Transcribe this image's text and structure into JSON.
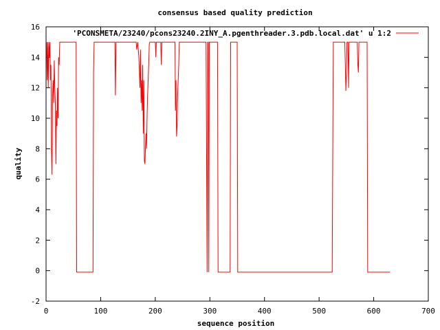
{
  "chart_data": {
    "type": "line",
    "title": "consensus based quality prediction",
    "xlabel": "sequence position",
    "ylabel": "quality",
    "xlim": [
      0,
      700
    ],
    "ylim": [
      -2,
      16
    ],
    "xticks": [
      0,
      100,
      200,
      300,
      400,
      500,
      600,
      700
    ],
    "yticks": [
      -2,
      0,
      2,
      4,
      6,
      8,
      10,
      12,
      14,
      16
    ],
    "grid": false,
    "legend_position": "top-right",
    "series": [
      {
        "name": "'PCONSMETA/23240/pcons23240.2INY_A.pgenthreader.3.pdb.local.dat' u 1:2",
        "color": "#ff0000",
        "points": [
          [
            1,
            15
          ],
          [
            2,
            12.5
          ],
          [
            3,
            15
          ],
          [
            4,
            12.0
          ],
          [
            5,
            15
          ],
          [
            6,
            14.0
          ],
          [
            7,
            15
          ],
          [
            8,
            12.5
          ],
          [
            9,
            13.5
          ],
          [
            10,
            8.0
          ],
          [
            11,
            6.3
          ],
          [
            12,
            11.5
          ],
          [
            13,
            12.5
          ],
          [
            14,
            11.0
          ],
          [
            15,
            13.8
          ],
          [
            16,
            12.0
          ],
          [
            17,
            11.0
          ],
          [
            18,
            7.0
          ],
          [
            19,
            10.5
          ],
          [
            20,
            9.5
          ],
          [
            21,
            12.0
          ],
          [
            22,
            10.0
          ],
          [
            23,
            14.0
          ],
          [
            24,
            13.5
          ],
          [
            25,
            15
          ],
          [
            55,
            15
          ],
          [
            56,
            -0.1
          ],
          [
            86,
            -0.1
          ],
          [
            87,
            13.0
          ],
          [
            88,
            15
          ],
          [
            126,
            15
          ],
          [
            127,
            11.5
          ],
          [
            128,
            15
          ],
          [
            165,
            15
          ],
          [
            166,
            14.5
          ],
          [
            168,
            15
          ],
          [
            170,
            14.0
          ],
          [
            172,
            12.0
          ],
          [
            173,
            14.5
          ],
          [
            174,
            11.0
          ],
          [
            175,
            12.5
          ],
          [
            176,
            10.5
          ],
          [
            177,
            13.5
          ],
          [
            178,
            9.0
          ],
          [
            179,
            12.5
          ],
          [
            180,
            7.2
          ],
          [
            181,
            7.0
          ],
          [
            182,
            8.0
          ],
          [
            183,
            9.0
          ],
          [
            184,
            8.0
          ],
          [
            185,
            10.0
          ],
          [
            186,
            11.5
          ],
          [
            187,
            12.5
          ],
          [
            188,
            13.5
          ],
          [
            189,
            14.8
          ],
          [
            190,
            15
          ],
          [
            200,
            15
          ],
          [
            201,
            14.0
          ],
          [
            202,
            15
          ],
          [
            210,
            15
          ],
          [
            211,
            13.5
          ],
          [
            212,
            15
          ],
          [
            236,
            15
          ],
          [
            237,
            10.5
          ],
          [
            238,
            12.5
          ],
          [
            239,
            8.8
          ],
          [
            240,
            9.5
          ],
          [
            241,
            11.5
          ],
          [
            242,
            12.5
          ],
          [
            243,
            13.5
          ],
          [
            244,
            15
          ],
          [
            293,
            15
          ],
          [
            294,
            7.5
          ],
          [
            295,
            -0.1
          ],
          [
            296,
            15
          ],
          [
            297,
            15
          ],
          [
            298,
            -0.1
          ],
          [
            299,
            15
          ],
          [
            314,
            15
          ],
          [
            315,
            -0.1
          ],
          [
            337,
            -0.1
          ],
          [
            338,
            15
          ],
          [
            350,
            15
          ],
          [
            351,
            -0.1
          ],
          [
            524,
            -0.1
          ],
          [
            525,
            7.5
          ],
          [
            526,
            15
          ],
          [
            547,
            15
          ],
          [
            548,
            13.5
          ],
          [
            549,
            11.8
          ],
          [
            550,
            13.0
          ],
          [
            551,
            15
          ],
          [
            553,
            15
          ],
          [
            554,
            12.0
          ],
          [
            555,
            15
          ],
          [
            570,
            15
          ],
          [
            571,
            13.5
          ],
          [
            572,
            13.0
          ],
          [
            573,
            15
          ],
          [
            588,
            15
          ],
          [
            589,
            -0.1
          ],
          [
            630,
            -0.1
          ]
        ]
      }
    ]
  }
}
